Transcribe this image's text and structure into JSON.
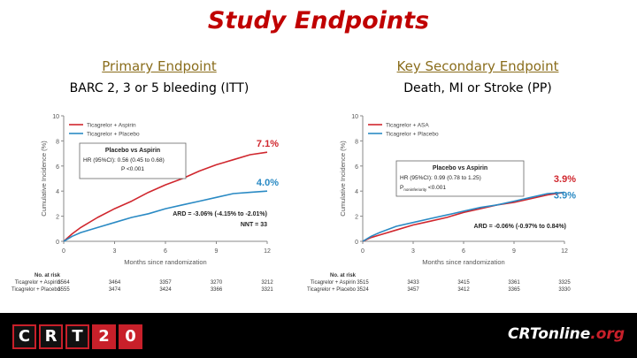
{
  "title": "Study Endpoints",
  "footer": {
    "logo_left_chars": [
      "C",
      "R",
      "T",
      "2",
      "0"
    ],
    "logo_right_main": "CRTonline",
    "logo_right_suffix": ".org"
  },
  "chart_data": [
    {
      "type": "line",
      "header": "Primary Endpoint",
      "subheader": "BARC 2, 3 or 5 bleeding (ITT)",
      "xlabel": "Months since randomization",
      "ylabel": "Cumulative Incidence (%)",
      "xlim": [
        0,
        12
      ],
      "ylim": [
        0,
        10
      ],
      "xticks": [
        0,
        3,
        6,
        9,
        12
      ],
      "yticks": [
        0,
        2,
        4,
        6,
        8,
        10
      ],
      "series": [
        {
          "name": "Ticagrelor + Aspirin",
          "color": "#d0272e",
          "x": [
            0,
            0.5,
            1,
            2,
            3,
            4,
            5,
            6,
            7,
            8,
            9,
            10,
            11,
            12
          ],
          "y": [
            0,
            0.6,
            1.1,
            1.9,
            2.6,
            3.2,
            3.9,
            4.5,
            5.0,
            5.6,
            6.1,
            6.5,
            6.9,
            7.1
          ]
        },
        {
          "name": "Ticagrelor + Placebo",
          "color": "#2a8ac4",
          "x": [
            0,
            0.5,
            1,
            2,
            3,
            4,
            5,
            6,
            7,
            8,
            9,
            10,
            11,
            12
          ],
          "y": [
            0,
            0.4,
            0.7,
            1.1,
            1.5,
            1.9,
            2.2,
            2.6,
            2.9,
            3.2,
            3.5,
            3.8,
            3.9,
            4.0
          ]
        }
      ],
      "end_labels": [
        {
          "text": "7.1%",
          "color": "#d0272e",
          "x": 12,
          "y": 7.1
        },
        {
          "text": "4.0%",
          "color": "#2a8ac4",
          "x": 12,
          "y": 4.0
        }
      ],
      "box": {
        "title": "Placebo vs Aspirin",
        "line1": "HR (95%CI): 0.56 (0.45 to 0.68)",
        "line2": "P <0.001"
      },
      "annotations": [
        "ARD = -3.06% (-4.15% to -2.01%)",
        "NNT = 33"
      ],
      "risk_table": {
        "title": "No. at risk",
        "rows": [
          {
            "label": "Ticagrelor + Aspirin",
            "values": [
              "3564",
              "3464",
              "3357",
              "3270",
              "3212"
            ]
          },
          {
            "label": "Ticagrelor + Placebo",
            "values": [
              "3555",
              "3474",
              "3424",
              "3366",
              "3321"
            ]
          }
        ]
      }
    },
    {
      "type": "line",
      "header": "Key Secondary Endpoint",
      "subheader": "Death, MI or Stroke (PP)",
      "xlabel": "Months since randomization",
      "ylabel": "Cumulative Incidence (%)",
      "xlim": [
        0,
        12
      ],
      "ylim": [
        0,
        10
      ],
      "xticks": [
        0,
        3,
        6,
        9,
        12
      ],
      "yticks": [
        0,
        2,
        4,
        6,
        8,
        10
      ],
      "series": [
        {
          "name": "Ticagrelor + ASA",
          "color": "#d0272e",
          "x": [
            0,
            0.5,
            1,
            2,
            3,
            4,
            5,
            6,
            7,
            8,
            9,
            10,
            11,
            12
          ],
          "y": [
            0,
            0.3,
            0.5,
            0.9,
            1.3,
            1.6,
            1.9,
            2.3,
            2.6,
            2.9,
            3.1,
            3.4,
            3.7,
            3.9
          ]
        },
        {
          "name": "Ticagrelor + Placebo",
          "color": "#2a8ac4",
          "x": [
            0,
            0.5,
            1,
            2,
            3,
            4,
            5,
            6,
            7,
            8,
            9,
            10,
            11,
            12
          ],
          "y": [
            0,
            0.4,
            0.7,
            1.2,
            1.5,
            1.8,
            2.1,
            2.4,
            2.7,
            2.9,
            3.2,
            3.5,
            3.8,
            3.9
          ]
        }
      ],
      "end_labels": [
        {
          "text": "3.9%",
          "color": "#d0272e",
          "x": 12,
          "y": 4.5
        },
        {
          "text": "3.9%",
          "color": "#2a8ac4",
          "x": 12,
          "y": 3.2
        }
      ],
      "box": {
        "title": "Placebo vs Aspirin",
        "line1": "HR (95%CI): 0.99 (0.78 to 1.25)",
        "line2_main": "P",
        "line2_sub": "noninferiority",
        "line2_tail": " <0.001"
      },
      "annotations": [
        "ARD = -0.06% (-0.97% to 0.84%)"
      ],
      "risk_table": {
        "title": "No. at risk",
        "rows": [
          {
            "label": "Ticagrelor + Aspirin",
            "values": [
              "3515",
              "3433",
              "3415",
              "3361",
              "3325"
            ]
          },
          {
            "label": "Ticagrelor + Placebo",
            "values": [
              "3524",
              "3457",
              "3412",
              "3365",
              "3330"
            ]
          }
        ]
      }
    }
  ]
}
